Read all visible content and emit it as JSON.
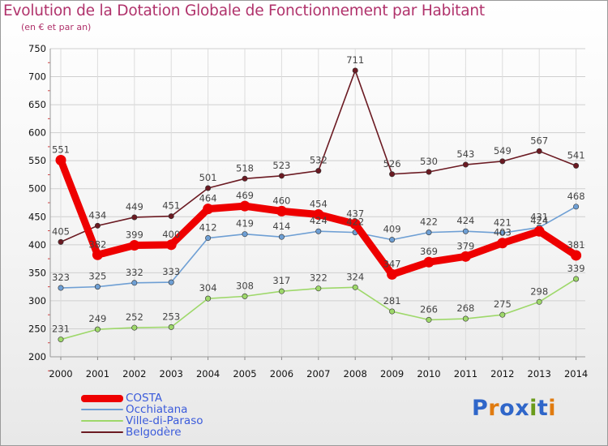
{
  "header": {
    "title": "Evolution de la Dotation Globale de Fonctionnement par Habitant",
    "subtitle": "(en € et par an)"
  },
  "logo": {
    "text": "Proxiti",
    "colors": [
      "#2f66c9",
      "#e07b10",
      "#2f66c9",
      "#2f66c9",
      "#6a9b1b",
      "#2f66c9",
      "#e07b10"
    ]
  },
  "chart_data": {
    "type": "line",
    "title": "Evolution de la Dotation Globale de Fonctionnement par Habitant",
    "subtitle": "(en € et par an)",
    "xlabel": "",
    "ylabel": "",
    "x": [
      "2000",
      "2001",
      "2002",
      "2003",
      "2004",
      "2005",
      "2006",
      "2007",
      "2008",
      "2009",
      "2010",
      "2011",
      "2012",
      "2013",
      "2014"
    ],
    "ylim": [
      200,
      750
    ],
    "yticks": [
      200,
      250,
      300,
      350,
      400,
      450,
      500,
      550,
      600,
      650,
      700,
      750
    ],
    "grid": true,
    "legend": "bottom-left",
    "series": [
      {
        "name": "COSTA",
        "color": "#ee0000",
        "emphasis": true,
        "values": [
          551,
          382,
          399,
          400,
          464,
          469,
          460,
          454,
          437,
          347,
          369,
          379,
          403,
          424,
          381
        ]
      },
      {
        "name": "Occhiatana",
        "color": "#6e9fd4",
        "values": [
          323,
          325,
          332,
          333,
          412,
          419,
          414,
          424,
          422,
          409,
          422,
          424,
          421,
          431,
          468
        ]
      },
      {
        "name": "Ville-di-Paraso",
        "color": "#9ed86a",
        "values": [
          231,
          249,
          252,
          253,
          304,
          308,
          317,
          322,
          324,
          281,
          266,
          268,
          275,
          298,
          339
        ]
      },
      {
        "name": "Belgodère",
        "color": "#6b1a22",
        "values": [
          405,
          434,
          449,
          451,
          501,
          518,
          523,
          532,
          711,
          526,
          530,
          543,
          549,
          567,
          541
        ]
      }
    ]
  }
}
